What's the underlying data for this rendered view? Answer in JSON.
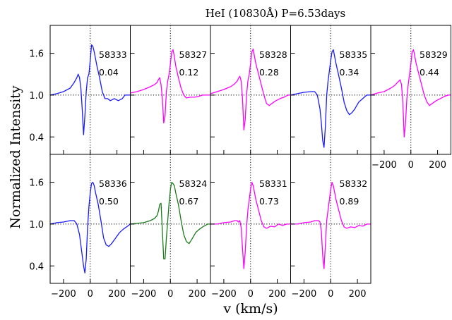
{
  "chart_data": {
    "type": "line",
    "title": "HeI (10830Å)   P=6.53days",
    "xlabel": "v (km/s)",
    "ylabel": "Normalized Intensity",
    "xlim": [
      -300,
      300
    ],
    "ylim": [
      0.15,
      2.0
    ],
    "xticks": [
      -200,
      0,
      200
    ],
    "xtick_labels": [
      "−200",
      "0",
      "200"
    ],
    "yticks": [
      0.4,
      1.0,
      1.6
    ],
    "ytick_labels": [
      "0.4",
      "1.0",
      "1.6"
    ],
    "reference_lines": {
      "x": 0,
      "y": 1.0,
      "style": "dotted"
    },
    "colors": {
      "blue": "#1a1aff",
      "magenta": "#ff00ff",
      "green": "#1b7a1b"
    },
    "panels": [
      {
        "id": "58333",
        "phase": "0.04",
        "color": "blue",
        "x": [
          -300,
          -250,
          -200,
          -150,
          -120,
          -100,
          -90,
          -80,
          -70,
          -60,
          -50,
          -40,
          -30,
          -20,
          -10,
          0,
          10,
          20,
          30,
          40,
          50,
          70,
          90,
          110,
          130,
          150,
          180,
          210,
          240,
          260,
          280,
          300
        ],
        "y": [
          1.0,
          1.02,
          1.05,
          1.1,
          1.18,
          1.25,
          1.3,
          1.25,
          1.1,
          0.8,
          0.43,
          0.7,
          1.05,
          1.25,
          1.3,
          1.5,
          1.72,
          1.7,
          1.62,
          1.52,
          1.42,
          1.25,
          1.05,
          0.95,
          0.95,
          0.92,
          0.95,
          0.92,
          0.95,
          1.0,
          1.0,
          1.0
        ]
      },
      {
        "id": "58327",
        "phase": "0.12",
        "color": "magenta",
        "x": [
          -300,
          -250,
          -200,
          -150,
          -120,
          -100,
          -90,
          -80,
          -70,
          -60,
          -50,
          -40,
          -30,
          -20,
          -10,
          0,
          10,
          20,
          30,
          40,
          60,
          80,
          100,
          120,
          150,
          180,
          210,
          240,
          270,
          300
        ],
        "y": [
          1.03,
          1.05,
          1.08,
          1.12,
          1.15,
          1.18,
          1.22,
          1.25,
          1.15,
          0.95,
          0.6,
          0.7,
          1.05,
          1.2,
          1.3,
          1.45,
          1.62,
          1.65,
          1.55,
          1.42,
          1.25,
          1.1,
          1.0,
          0.96,
          0.97,
          0.97,
          0.98,
          1.0,
          1.0,
          1.0
        ]
      },
      {
        "id": "58328",
        "phase": "0.28",
        "color": "magenta",
        "x": [
          -300,
          -250,
          -200,
          -150,
          -120,
          -100,
          -90,
          -80,
          -70,
          -60,
          -50,
          -40,
          -30,
          -20,
          -10,
          0,
          10,
          20,
          30,
          40,
          60,
          80,
          100,
          120,
          140,
          160,
          190,
          220,
          250,
          280,
          300
        ],
        "y": [
          1.02,
          1.05,
          1.08,
          1.12,
          1.16,
          1.2,
          1.24,
          1.27,
          1.2,
          0.95,
          0.5,
          0.65,
          1.0,
          1.2,
          1.3,
          1.45,
          1.62,
          1.66,
          1.55,
          1.45,
          1.3,
          1.15,
          1.0,
          0.88,
          0.85,
          0.88,
          0.92,
          0.95,
          0.97,
          1.0,
          1.0
        ]
      },
      {
        "id": "58335",
        "phase": "0.34",
        "color": "blue",
        "x": [
          -300,
          -250,
          -200,
          -150,
          -120,
          -100,
          -90,
          -80,
          -70,
          -60,
          -50,
          -40,
          -30,
          -20,
          -10,
          0,
          10,
          20,
          30,
          40,
          60,
          80,
          100,
          120,
          140,
          160,
          180,
          210,
          240,
          270,
          300
        ],
        "y": [
          1.0,
          1.02,
          1.04,
          1.05,
          1.05,
          1.0,
          0.9,
          0.8,
          0.6,
          0.35,
          0.25,
          0.55,
          1.0,
          1.2,
          1.35,
          1.5,
          1.62,
          1.65,
          1.55,
          1.45,
          1.28,
          1.1,
          0.9,
          0.78,
          0.72,
          0.75,
          0.8,
          0.9,
          0.95,
          1.0,
          1.0
        ]
      },
      {
        "id": "58329",
        "phase": "0.44",
        "color": "magenta",
        "x": [
          -300,
          -250,
          -200,
          -150,
          -120,
          -100,
          -90,
          -80,
          -70,
          -60,
          -50,
          -40,
          -30,
          -20,
          -10,
          0,
          10,
          20,
          30,
          40,
          60,
          80,
          100,
          120,
          140,
          160,
          190,
          220,
          250,
          280,
          300
        ],
        "y": [
          1.0,
          1.03,
          1.05,
          1.1,
          1.14,
          1.18,
          1.2,
          1.22,
          1.15,
          0.9,
          0.4,
          0.6,
          0.95,
          1.15,
          1.3,
          1.45,
          1.62,
          1.65,
          1.55,
          1.45,
          1.3,
          1.15,
          1.0,
          0.9,
          0.85,
          0.88,
          0.92,
          0.95,
          0.98,
          1.0,
          1.0
        ]
      },
      {
        "id": "58336",
        "phase": "0.50",
        "color": "blue",
        "x": [
          -300,
          -250,
          -200,
          -150,
          -120,
          -100,
          -80,
          -60,
          -50,
          -40,
          -30,
          -20,
          -10,
          0,
          10,
          20,
          30,
          40,
          60,
          80,
          100,
          120,
          140,
          160,
          190,
          220,
          250,
          280,
          300
        ],
        "y": [
          1.0,
          1.02,
          1.03,
          1.05,
          1.05,
          1.0,
          0.85,
          0.55,
          0.4,
          0.3,
          0.5,
          0.95,
          1.25,
          1.45,
          1.58,
          1.6,
          1.55,
          1.45,
          1.28,
          1.05,
          0.8,
          0.7,
          0.68,
          0.72,
          0.8,
          0.88,
          0.93,
          0.97,
          1.0
        ]
      },
      {
        "id": "58324",
        "phase": "0.67",
        "color": "green",
        "x": [
          -300,
          -250,
          -200,
          -150,
          -120,
          -100,
          -90,
          -80,
          -70,
          -60,
          -50,
          -40,
          -30,
          -20,
          -10,
          0,
          10,
          20,
          30,
          40,
          60,
          80,
          100,
          120,
          140,
          160,
          190,
          220,
          250,
          280,
          300
        ],
        "y": [
          1.0,
          1.01,
          1.02,
          1.05,
          1.08,
          1.12,
          1.18,
          1.28,
          1.3,
          0.9,
          0.5,
          0.5,
          0.8,
          1.05,
          1.3,
          1.5,
          1.6,
          1.58,
          1.55,
          1.45,
          1.28,
          1.05,
          0.85,
          0.75,
          0.72,
          0.78,
          0.88,
          0.93,
          0.97,
          1.0,
          1.0
        ]
      },
      {
        "id": "58331",
        "phase": "0.73",
        "color": "magenta",
        "x": [
          -300,
          -250,
          -200,
          -150,
          -120,
          -100,
          -90,
          -80,
          -70,
          -60,
          -50,
          -40,
          -30,
          -20,
          -10,
          0,
          10,
          20,
          30,
          40,
          60,
          80,
          100,
          120,
          150,
          180,
          210,
          240,
          270,
          300
        ],
        "y": [
          1.0,
          1.0,
          1.02,
          1.03,
          1.05,
          1.05,
          1.03,
          1.05,
          0.95,
          0.65,
          0.36,
          0.6,
          0.95,
          1.2,
          1.35,
          1.5,
          1.6,
          1.55,
          1.45,
          1.35,
          1.2,
          1.05,
          0.96,
          0.94,
          0.97,
          0.96,
          1.0,
          0.98,
          1.0,
          1.0
        ]
      },
      {
        "id": "58332",
        "phase": "0.89",
        "color": "magenta",
        "x": [
          -300,
          -250,
          -200,
          -150,
          -120,
          -100,
          -90,
          -80,
          -70,
          -60,
          -50,
          -40,
          -30,
          -20,
          -10,
          0,
          10,
          20,
          30,
          40,
          60,
          80,
          100,
          120,
          150,
          180,
          210,
          240,
          270,
          300
        ],
        "y": [
          1.0,
          1.0,
          1.02,
          1.03,
          1.05,
          1.05,
          1.05,
          1.03,
          0.9,
          0.55,
          0.36,
          0.7,
          1.05,
          1.2,
          1.35,
          1.5,
          1.6,
          1.55,
          1.45,
          1.35,
          1.2,
          1.05,
          0.96,
          0.94,
          0.96,
          0.95,
          0.98,
          0.97,
          1.0,
          1.0
        ]
      }
    ]
  }
}
